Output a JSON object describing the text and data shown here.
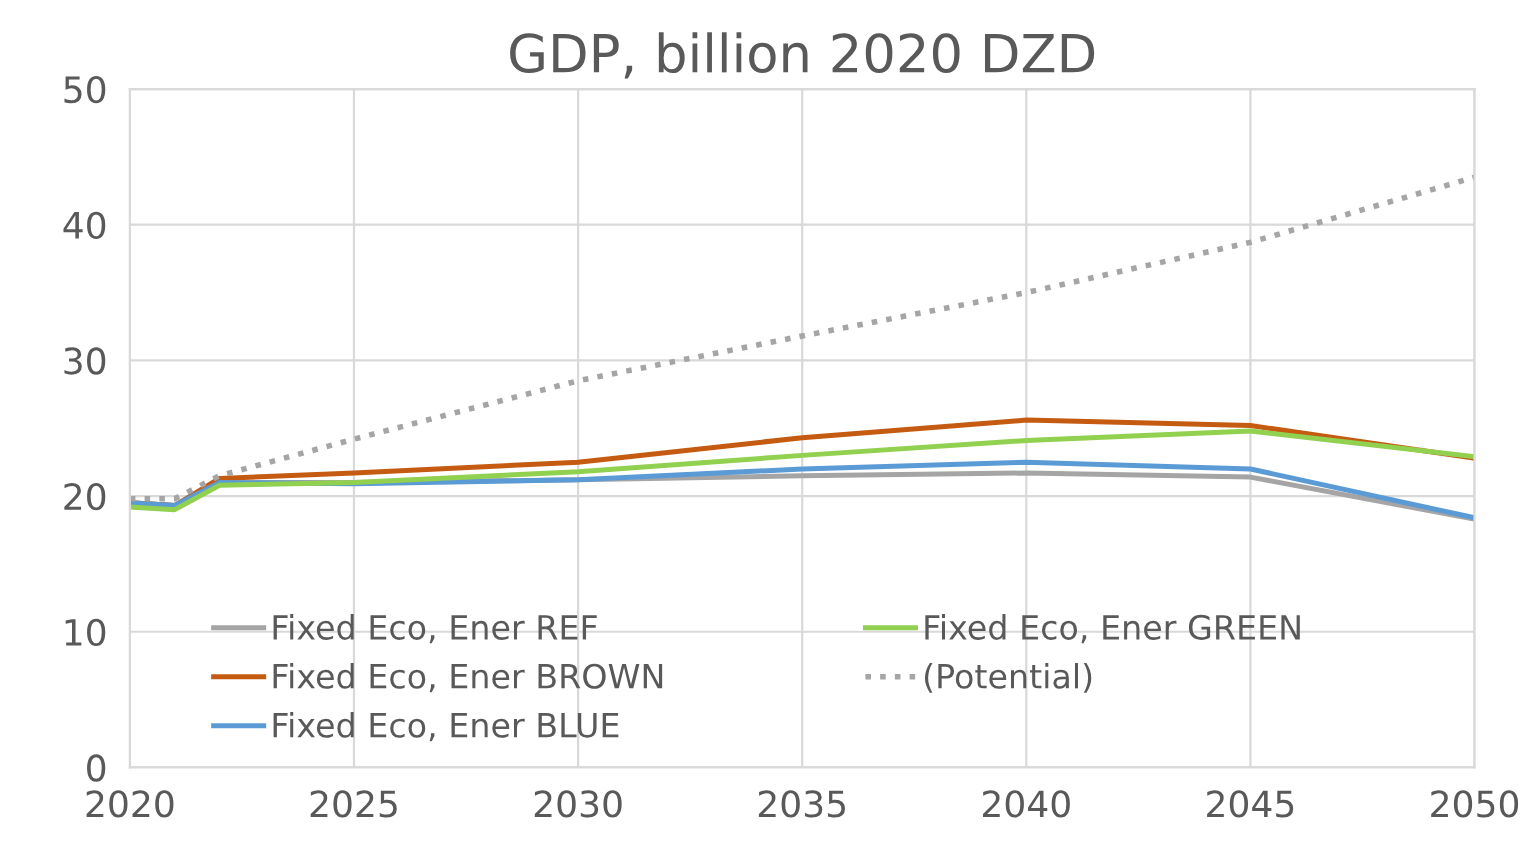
{
  "chart_data": {
    "type": "line",
    "title": "GDP, billion 2020 DZD",
    "x": [
      2020,
      2021,
      2022,
      2025,
      2030,
      2035,
      2040,
      2045,
      2050
    ],
    "series": [
      {
        "name": "Fixed Eco, Ener REF",
        "color": "#a5a5a5",
        "values": [
          19.5,
          19.3,
          21.0,
          21.0,
          21.2,
          21.5,
          21.7,
          21.4,
          18.3
        ]
      },
      {
        "name": "Fixed Eco, Ener BROWN",
        "color": "#c55a11",
        "values": [
          19.5,
          19.3,
          21.3,
          21.7,
          22.5,
          24.3,
          25.6,
          25.2,
          22.8
        ]
      },
      {
        "name": "Fixed Eco, Ener BLUE",
        "color": "#5b9bd5",
        "values": [
          19.5,
          19.3,
          21.0,
          20.9,
          21.2,
          22.0,
          22.5,
          22.0,
          18.4
        ]
      },
      {
        "name": "Fixed Eco, Ener GREEN",
        "color": "#92d050",
        "values": [
          19.2,
          19.0,
          20.8,
          21.0,
          21.8,
          23.0,
          24.1,
          24.8,
          22.9
        ]
      },
      {
        "name": "(Potential)",
        "color": "#a5a5a5",
        "line_style": "dotted",
        "values": [
          19.8,
          19.8,
          21.5,
          24.2,
          28.5,
          31.8,
          35.0,
          38.7,
          43.5
        ]
      }
    ],
    "xlim": [
      2020,
      2050
    ],
    "xticks": [
      2020,
      2025,
      2030,
      2035,
      2040,
      2045,
      2050
    ],
    "ylim": [
      0,
      50
    ],
    "yticks": [
      0,
      10,
      20,
      30,
      40,
      50
    ],
    "grid": true,
    "legend": "bottom",
    "marker": "none",
    "line_style": "solid"
  }
}
